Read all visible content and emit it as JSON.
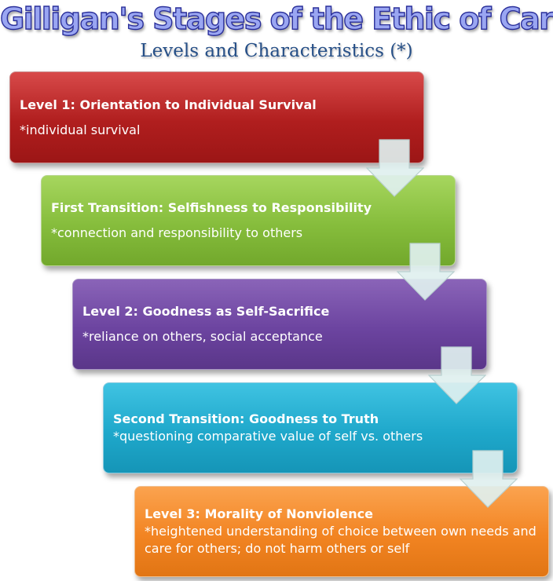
{
  "title": "Gilligan's Stages of the Ethic of Care",
  "subtitle": "Levels and Characteristics (*)",
  "stages": [
    {
      "heading": "Level 1: Orientation to Individual Survival",
      "detail": "*individual survival"
    },
    {
      "heading": "First Transition: Selfishness to Responsibility",
      "detail": "*connection and responsibility to others"
    },
    {
      "heading": "Level 2: Goodness as Self-Sacrifice",
      "detail": "*reliance on others, social acceptance"
    },
    {
      "heading": "Second Transition: Goodness to Truth",
      "detail": "*questioning comparative value of self vs. others"
    },
    {
      "heading": "Level 3: Morality of Nonviolence",
      "detail": "*heightened understanding of choice between own needs and care for others; do not harm others or self"
    }
  ],
  "colors": {
    "level1": "#b01e1e",
    "transition1": "#86bd3c",
    "level2": "#6c44a0",
    "transition2": "#1fa8cb",
    "level3": "#f28422",
    "arrow": "#dff0ef",
    "title_fill": "#9aa6f2",
    "subtitle": "#264f87"
  },
  "icons": [
    "down-arrow-icon"
  ]
}
